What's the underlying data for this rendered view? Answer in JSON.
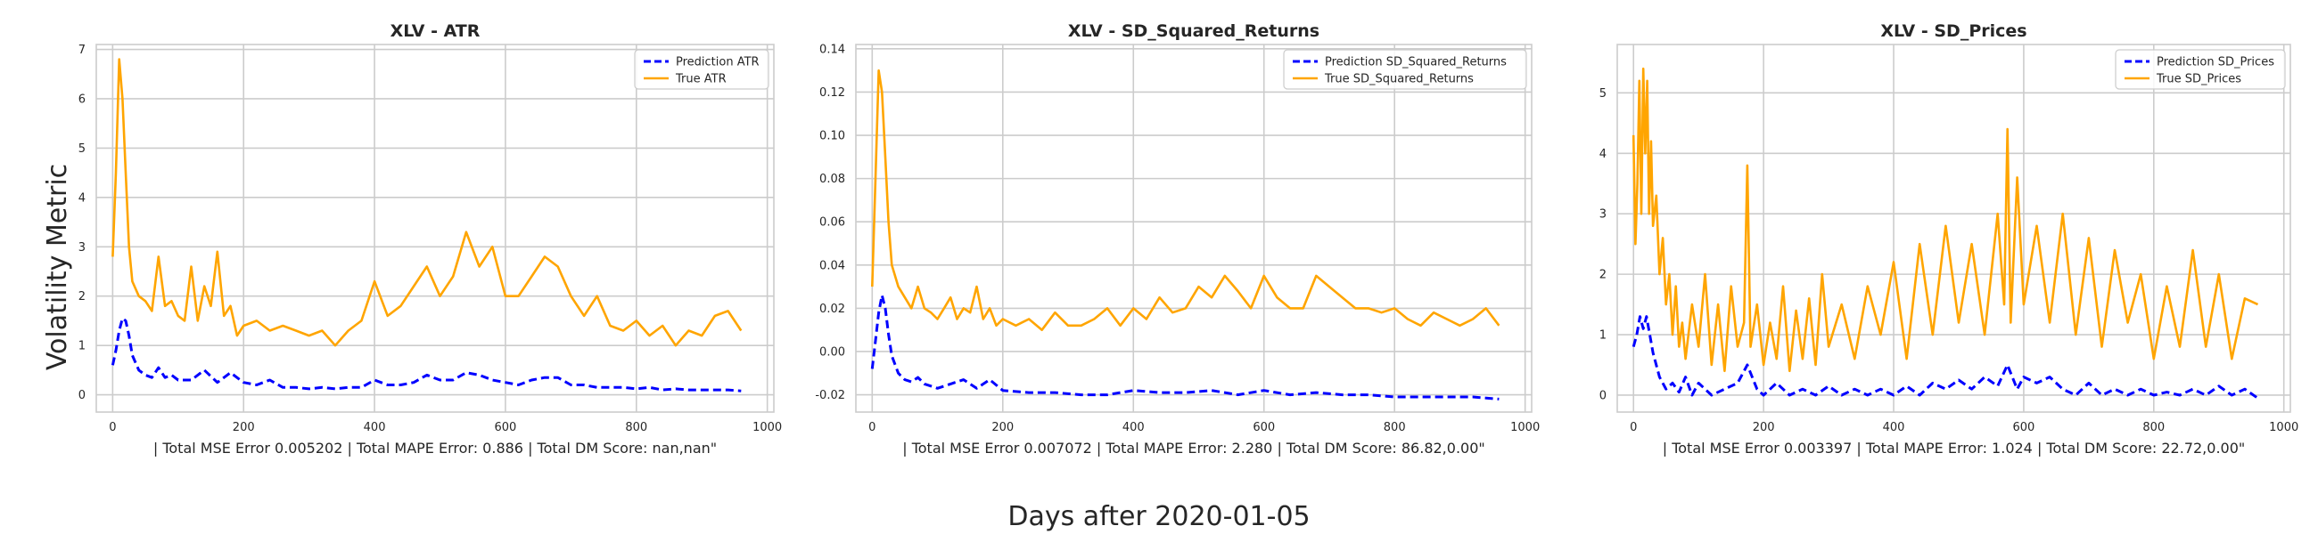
{
  "figure": {
    "ylabel": "Volatility Metric",
    "xlabel": "Days after 2020-01-05"
  },
  "colors": {
    "prediction": "#0000ff",
    "true": "#ffa500",
    "grid": "#cccccc",
    "frame": "#cccccc"
  },
  "chart_data": [
    {
      "type": "line",
      "title": "XLV - ATR",
      "xlabel": "| Total MSE Error 0.005202 | Total MAPE Error: 0.886 | Total DM Score: nan,nan\"",
      "xlim": [
        -25,
        1010
      ],
      "ylim": [
        -0.35,
        7.1
      ],
      "xticks": [
        0,
        200,
        400,
        600,
        800,
        1000
      ],
      "yticks": [
        0,
        1,
        2,
        3,
        4,
        5,
        6,
        7
      ],
      "grid": true,
      "legend_position": "top-right",
      "series": [
        {
          "name": "Prediction ATR",
          "style": "dashed",
          "x": [
            0,
            5,
            10,
            15,
            20,
            25,
            30,
            40,
            50,
            60,
            70,
            80,
            90,
            100,
            120,
            140,
            160,
            180,
            200,
            220,
            240,
            260,
            280,
            300,
            320,
            340,
            360,
            380,
            400,
            420,
            440,
            460,
            480,
            500,
            520,
            540,
            560,
            580,
            600,
            620,
            640,
            660,
            680,
            700,
            720,
            740,
            760,
            780,
            800,
            820,
            840,
            860,
            880,
            900,
            920,
            940,
            960
          ],
          "y": [
            0.6,
            0.9,
            1.3,
            1.55,
            1.5,
            1.2,
            0.8,
            0.5,
            0.4,
            0.35,
            0.55,
            0.35,
            0.4,
            0.3,
            0.3,
            0.5,
            0.25,
            0.45,
            0.25,
            0.2,
            0.3,
            0.15,
            0.15,
            0.12,
            0.15,
            0.12,
            0.15,
            0.15,
            0.3,
            0.2,
            0.2,
            0.25,
            0.4,
            0.3,
            0.3,
            0.45,
            0.4,
            0.3,
            0.25,
            0.2,
            0.3,
            0.35,
            0.35,
            0.2,
            0.2,
            0.15,
            0.15,
            0.15,
            0.12,
            0.15,
            0.1,
            0.12,
            0.1,
            0.1,
            0.1,
            0.1,
            0.08
          ]
        },
        {
          "name": "True ATR",
          "style": "solid",
          "x": [
            0,
            5,
            10,
            15,
            20,
            25,
            30,
            40,
            50,
            60,
            70,
            80,
            90,
            100,
            110,
            120,
            130,
            140,
            150,
            160,
            170,
            180,
            190,
            200,
            220,
            240,
            260,
            280,
            300,
            320,
            340,
            360,
            380,
            400,
            420,
            440,
            460,
            480,
            500,
            520,
            540,
            560,
            580,
            600,
            620,
            640,
            660,
            680,
            700,
            720,
            740,
            760,
            780,
            800,
            820,
            840,
            860,
            880,
            900,
            920,
            940,
            960
          ],
          "y": [
            2.8,
            4.5,
            6.8,
            6.0,
            4.5,
            3.0,
            2.3,
            2.0,
            1.9,
            1.7,
            2.8,
            1.8,
            1.9,
            1.6,
            1.5,
            2.6,
            1.5,
            2.2,
            1.8,
            2.9,
            1.6,
            1.8,
            1.2,
            1.4,
            1.5,
            1.3,
            1.4,
            1.3,
            1.2,
            1.3,
            1.0,
            1.3,
            1.5,
            2.3,
            1.6,
            1.8,
            2.2,
            2.6,
            2.0,
            2.4,
            3.3,
            2.6,
            3.0,
            2.0,
            2.0,
            2.4,
            2.8,
            2.6,
            2.0,
            1.6,
            2.0,
            1.4,
            1.3,
            1.5,
            1.2,
            1.4,
            1.0,
            1.3,
            1.2,
            1.6,
            1.7,
            1.3
          ]
        }
      ]
    },
    {
      "type": "line",
      "title": "XLV - SD_Squared_Returns",
      "xlabel": "| Total MSE Error 0.007072 | Total MAPE Error: 2.280 | Total DM Score: 86.82,0.00\"",
      "xlim": [
        -25,
        1010
      ],
      "ylim": [
        -0.028,
        0.142
      ],
      "xticks": [
        0,
        200,
        400,
        600,
        800,
        1000
      ],
      "yticks": [
        -0.02,
        0.0,
        0.02,
        0.04,
        0.06,
        0.08,
        0.1,
        0.12,
        0.14
      ],
      "grid": true,
      "legend_position": "top-right",
      "series": [
        {
          "name": "Prediction SD_Squared_Returns",
          "style": "dashed",
          "x": [
            0,
            5,
            10,
            15,
            20,
            25,
            30,
            40,
            50,
            60,
            70,
            80,
            90,
            100,
            120,
            140,
            160,
            180,
            200,
            240,
            280,
            320,
            360,
            400,
            440,
            480,
            520,
            560,
            600,
            640,
            680,
            720,
            760,
            800,
            840,
            880,
            920,
            960
          ],
          "y": [
            -0.008,
            0.005,
            0.018,
            0.026,
            0.02,
            0.008,
            -0.002,
            -0.01,
            -0.013,
            -0.014,
            -0.012,
            -0.015,
            -0.016,
            -0.017,
            -0.015,
            -0.013,
            -0.017,
            -0.013,
            -0.018,
            -0.019,
            -0.019,
            -0.02,
            -0.02,
            -0.018,
            -0.019,
            -0.019,
            -0.018,
            -0.02,
            -0.018,
            -0.02,
            -0.019,
            -0.02,
            -0.02,
            -0.021,
            -0.021,
            -0.021,
            -0.021,
            -0.022
          ]
        },
        {
          "name": "True SD_Squared_Returns",
          "style": "solid",
          "x": [
            0,
            5,
            10,
            15,
            20,
            25,
            30,
            40,
            50,
            60,
            70,
            80,
            90,
            100,
            110,
            120,
            130,
            140,
            150,
            160,
            170,
            180,
            190,
            200,
            220,
            240,
            260,
            280,
            300,
            320,
            340,
            360,
            380,
            400,
            420,
            440,
            460,
            480,
            500,
            520,
            540,
            560,
            580,
            600,
            620,
            640,
            660,
            680,
            700,
            720,
            740,
            760,
            780,
            800,
            820,
            840,
            860,
            880,
            900,
            920,
            940,
            960
          ],
          "y": [
            0.03,
            0.08,
            0.13,
            0.12,
            0.09,
            0.06,
            0.04,
            0.03,
            0.025,
            0.02,
            0.03,
            0.02,
            0.018,
            0.015,
            0.02,
            0.025,
            0.015,
            0.02,
            0.018,
            0.03,
            0.015,
            0.02,
            0.012,
            0.015,
            0.012,
            0.015,
            0.01,
            0.018,
            0.012,
            0.012,
            0.015,
            0.02,
            0.012,
            0.02,
            0.015,
            0.025,
            0.018,
            0.02,
            0.03,
            0.025,
            0.035,
            0.028,
            0.02,
            0.035,
            0.025,
            0.02,
            0.02,
            0.035,
            0.03,
            0.025,
            0.02,
            0.02,
            0.018,
            0.02,
            0.015,
            0.012,
            0.018,
            0.015,
            0.012,
            0.015,
            0.02,
            0.012
          ]
        }
      ]
    },
    {
      "type": "line",
      "title": "XLV - SD_Prices",
      "xlabel": "| Total MSE Error 0.003397 | Total MAPE Error: 1.024 | Total DM Score: 22.72,0.00\"",
      "xlim": [
        -25,
        1010
      ],
      "ylim": [
        -0.28,
        5.8
      ],
      "xticks": [
        0,
        200,
        400,
        600,
        800,
        1000
      ],
      "yticks": [
        0,
        1,
        2,
        3,
        4,
        5
      ],
      "grid": true,
      "legend_position": "top-right",
      "series": [
        {
          "name": "Prediction SD_Prices",
          "style": "dashed",
          "x": [
            0,
            5,
            10,
            15,
            20,
            25,
            30,
            40,
            50,
            60,
            70,
            80,
            90,
            100,
            120,
            140,
            160,
            175,
            190,
            200,
            220,
            240,
            260,
            280,
            300,
            320,
            340,
            360,
            380,
            400,
            420,
            440,
            460,
            480,
            500,
            520,
            540,
            560,
            575,
            590,
            600,
            620,
            640,
            660,
            680,
            700,
            720,
            740,
            760,
            780,
            800,
            820,
            840,
            860,
            880,
            900,
            920,
            940,
            960
          ],
          "y": [
            0.8,
            1.0,
            1.3,
            1.1,
            1.3,
            1.0,
            0.7,
            0.3,
            0.1,
            0.2,
            0.05,
            0.3,
            0.0,
            0.2,
            0.0,
            0.1,
            0.2,
            0.5,
            0.1,
            0.0,
            0.2,
            0.0,
            0.1,
            0.0,
            0.15,
            0.0,
            0.1,
            0.0,
            0.1,
            0.0,
            0.15,
            0.0,
            0.2,
            0.1,
            0.25,
            0.1,
            0.3,
            0.15,
            0.5,
            0.1,
            0.3,
            0.2,
            0.3,
            0.1,
            0.0,
            0.2,
            0.0,
            0.1,
            0.0,
            0.1,
            0.0,
            0.05,
            0.0,
            0.1,
            0.0,
            0.15,
            0.0,
            0.1,
            -0.05
          ]
        },
        {
          "name": "True SD_Prices",
          "style": "solid",
          "x": [
            0,
            3,
            6,
            9,
            12,
            15,
            18,
            21,
            24,
            27,
            30,
            35,
            40,
            45,
            50,
            55,
            60,
            65,
            70,
            75,
            80,
            90,
            100,
            110,
            120,
            130,
            140,
            150,
            160,
            170,
            175,
            180,
            190,
            200,
            210,
            220,
            230,
            240,
            250,
            260,
            270,
            280,
            290,
            300,
            320,
            340,
            360,
            380,
            400,
            420,
            440,
            460,
            480,
            500,
            520,
            540,
            560,
            570,
            575,
            580,
            590,
            600,
            620,
            640,
            660,
            680,
            700,
            720,
            740,
            760,
            780,
            800,
            820,
            840,
            860,
            880,
            900,
            920,
            940,
            960
          ],
          "y": [
            4.3,
            2.5,
            3.5,
            5.2,
            3.0,
            5.4,
            4.0,
            5.2,
            3.0,
            4.2,
            2.8,
            3.3,
            2.0,
            2.6,
            1.5,
            2.0,
            1.0,
            1.8,
            0.8,
            1.2,
            0.6,
            1.5,
            0.8,
            2.0,
            0.5,
            1.5,
            0.4,
            1.8,
            0.8,
            1.2,
            3.8,
            0.8,
            1.5,
            0.5,
            1.2,
            0.6,
            1.8,
            0.4,
            1.4,
            0.6,
            1.6,
            0.5,
            2.0,
            0.8,
            1.5,
            0.6,
            1.8,
            1.0,
            2.2,
            0.6,
            2.5,
            1.0,
            2.8,
            1.2,
            2.5,
            1.0,
            3.0,
            1.5,
            4.4,
            1.2,
            3.6,
            1.5,
            2.8,
            1.2,
            3.0,
            1.0,
            2.6,
            0.8,
            2.4,
            1.2,
            2.0,
            0.6,
            1.8,
            0.8,
            2.4,
            0.8,
            2.0,
            0.6,
            1.6,
            1.5
          ]
        }
      ]
    }
  ]
}
